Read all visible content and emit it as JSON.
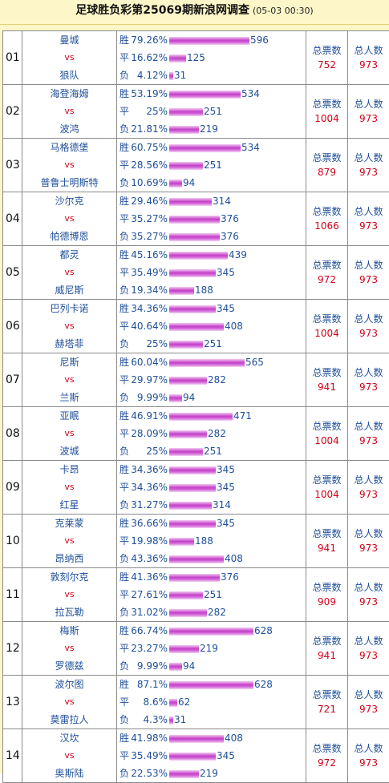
{
  "title": "足球胜负彩第25069期新浪网调查",
  "time": "(05-03 00:30)",
  "labels": {
    "win": "胜",
    "draw": "平",
    "loss": "负",
    "vs": "vs",
    "total_votes": "总票数",
    "total_people": "总人数"
  },
  "colors": {
    "bar": "#c43fc9",
    "vs": "#d0021b",
    "text": "#1f4f9a",
    "background": "#fdf6c8"
  },
  "matches": [
    {
      "no": "01",
      "home": "曼城",
      "away": "狼队",
      "win_pct": "79.26%",
      "win": 596,
      "draw_pct": "16.62%",
      "draw": 125,
      "loss_pct": "4.12%",
      "loss": 31,
      "votes": "752",
      "people": "973"
    },
    {
      "no": "02",
      "home": "海登海姆",
      "away": "波鸿",
      "win_pct": "53.19%",
      "win": 534,
      "draw_pct": "25%",
      "draw": 251,
      "loss_pct": "21.81%",
      "loss": 219,
      "votes": "1004",
      "people": "973"
    },
    {
      "no": "03",
      "home": "马格德堡",
      "away": "普鲁士明斯特",
      "win_pct": "60.75%",
      "win": 534,
      "draw_pct": "28.56%",
      "draw": 251,
      "loss_pct": "10.69%",
      "loss": 94,
      "votes": "879",
      "people": "973"
    },
    {
      "no": "04",
      "home": "沙尔克",
      "away": "帕德博恩",
      "win_pct": "29.46%",
      "win": 314,
      "draw_pct": "35.27%",
      "draw": 376,
      "loss_pct": "35.27%",
      "loss": 376,
      "votes": "1066",
      "people": "973"
    },
    {
      "no": "05",
      "home": "都灵",
      "away": "威尼斯",
      "win_pct": "45.16%",
      "win": 439,
      "draw_pct": "35.49%",
      "draw": 345,
      "loss_pct": "19.34%",
      "loss": 188,
      "votes": "972",
      "people": "973"
    },
    {
      "no": "06",
      "home": "巴列卡诺",
      "away": "赫塔菲",
      "win_pct": "34.36%",
      "win": 345,
      "draw_pct": "40.64%",
      "draw": 408,
      "loss_pct": "25%",
      "loss": 251,
      "votes": "1004",
      "people": "973"
    },
    {
      "no": "07",
      "home": "尼斯",
      "away": "兰斯",
      "win_pct": "60.04%",
      "win": 565,
      "draw_pct": "29.97%",
      "draw": 282,
      "loss_pct": "9.99%",
      "loss": 94,
      "votes": "941",
      "people": "973"
    },
    {
      "no": "08",
      "home": "亚眠",
      "away": "波城",
      "win_pct": "46.91%",
      "win": 471,
      "draw_pct": "28.09%",
      "draw": 282,
      "loss_pct": "25%",
      "loss": 251,
      "votes": "1004",
      "people": "973"
    },
    {
      "no": "09",
      "home": "卡昂",
      "away": "红星",
      "win_pct": "34.36%",
      "win": 345,
      "draw_pct": "34.36%",
      "draw": 345,
      "loss_pct": "31.27%",
      "loss": 314,
      "votes": "1004",
      "people": "973"
    },
    {
      "no": "10",
      "home": "克莱蒙",
      "away": "昂纳西",
      "win_pct": "36.66%",
      "win": 345,
      "draw_pct": "19.98%",
      "draw": 188,
      "loss_pct": "43.36%",
      "loss": 408,
      "votes": "941",
      "people": "973"
    },
    {
      "no": "11",
      "home": "敦刻尔克",
      "away": "拉瓦勒",
      "win_pct": "41.36%",
      "win": 376,
      "draw_pct": "27.61%",
      "draw": 251,
      "loss_pct": "31.02%",
      "loss": 282,
      "votes": "909",
      "people": "973"
    },
    {
      "no": "12",
      "home": "梅斯",
      "away": "罗德兹",
      "win_pct": "66.74%",
      "win": 628,
      "draw_pct": "23.27%",
      "draw": 219,
      "loss_pct": "9.99%",
      "loss": 94,
      "votes": "941",
      "people": "973"
    },
    {
      "no": "13",
      "home": "波尔图",
      "away": "莫雷拉人",
      "win_pct": "87.1%",
      "win": 628,
      "draw_pct": "8.6%",
      "draw": 62,
      "loss_pct": "4.3%",
      "loss": 31,
      "votes": "721",
      "people": "973"
    },
    {
      "no": "14",
      "home": "汉坎",
      "away": "奥斯陆",
      "win_pct": "41.98%",
      "win": 408,
      "draw_pct": "35.49%",
      "draw": 345,
      "loss_pct": "22.53%",
      "loss": 219,
      "votes": "972",
      "people": "973"
    }
  ]
}
